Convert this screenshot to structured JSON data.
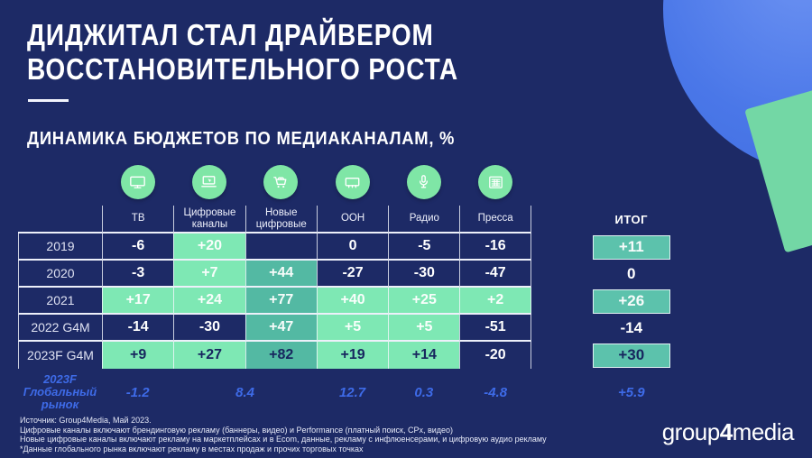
{
  "slide": {
    "title_line1": "ДИДЖИТАЛ СТАЛ ДРАЙВЕРОМ",
    "title_line2": "ВОССТАНОВИТЕЛЬНОГО РОСТА",
    "subtitle": "ДИНАМИКА БЮДЖЕТОВ ПО МЕДИАКАНАЛАМ, %"
  },
  "colors": {
    "background": "#1D2A66",
    "mint_cell": "#7EE8B4",
    "teal_cell": "#53B9A3",
    "total_box": "#5CC2AC",
    "accent_blue": "#3E6BE8",
    "icon_circle_green": "#7FE6A6",
    "decor_circle_blue": "#4A77E8",
    "decor_square_green": "#73D7A5",
    "text_white": "#FFFFFF",
    "text_dark_navy": "#17265E"
  },
  "table": {
    "columns": [
      {
        "label": "ТВ",
        "icon": "tv-icon"
      },
      {
        "label": "Цифровые каналы",
        "icon": "digital-channels-icon"
      },
      {
        "label": "Новые цифровые",
        "icon": "shopping-cart-icon"
      },
      {
        "label": "ООН",
        "icon": "billboard-icon"
      },
      {
        "label": "Радио",
        "icon": "microphone-icon"
      },
      {
        "label": "Пресса",
        "icon": "press-icon"
      }
    ],
    "total_label": "ИТОГ",
    "rows": [
      {
        "label": "2019",
        "cells": [
          {
            "v": "-6"
          },
          {
            "v": "+20",
            "bg": "mint",
            "fg": "light"
          },
          {
            "v": ""
          },
          {
            "v": "0"
          },
          {
            "v": "-5"
          },
          {
            "v": "-16"
          }
        ],
        "total": {
          "v": "+11",
          "box": true,
          "fg": "light"
        }
      },
      {
        "label": "2020",
        "cells": [
          {
            "v": "-3"
          },
          {
            "v": "+7",
            "bg": "mint",
            "fg": "light"
          },
          {
            "v": "+44",
            "bg": "teal",
            "fg": "light"
          },
          {
            "v": "-27"
          },
          {
            "v": "-30"
          },
          {
            "v": "-47"
          }
        ],
        "total": {
          "v": "0",
          "box": false
        }
      },
      {
        "label": "2021",
        "cells": [
          {
            "v": "+17",
            "bg": "mint",
            "fg": "light"
          },
          {
            "v": "+24",
            "bg": "mint",
            "fg": "light"
          },
          {
            "v": "+77",
            "bg": "teal",
            "fg": "light"
          },
          {
            "v": "+40",
            "bg": "mint",
            "fg": "light"
          },
          {
            "v": "+25",
            "bg": "mint",
            "fg": "light"
          },
          {
            "v": "+2",
            "bg": "mint",
            "fg": "light"
          }
        ],
        "total": {
          "v": "+26",
          "box": true,
          "fg": "light"
        }
      },
      {
        "label": "2022 G4M",
        "cells": [
          {
            "v": "-14"
          },
          {
            "v": "-30"
          },
          {
            "v": "+47",
            "bg": "teal",
            "fg": "light"
          },
          {
            "v": "+5",
            "bg": "mint",
            "fg": "light"
          },
          {
            "v": "+5",
            "bg": "mint",
            "fg": "light"
          },
          {
            "v": "-51"
          }
        ],
        "total": {
          "v": "-14",
          "box": false
        }
      },
      {
        "label": "2023F G4M",
        "cells": [
          {
            "v": "+9",
            "bg": "mint",
            "fg": "dark"
          },
          {
            "v": "+27",
            "bg": "mint",
            "fg": "dark"
          },
          {
            "v": "+82",
            "bg": "teal",
            "fg": "dark"
          },
          {
            "v": "+19",
            "bg": "mint",
            "fg": "dark"
          },
          {
            "v": "+14",
            "bg": "mint",
            "fg": "dark"
          },
          {
            "v": "-20"
          }
        ],
        "total": {
          "v": "+30",
          "box": true,
          "fg": "dark"
        }
      }
    ],
    "global_row": {
      "label_lines": [
        "2023F",
        "Глобальный",
        "рынок"
      ],
      "cells": [
        {
          "v": "-1.2",
          "span": 1
        },
        {
          "v": "8.4",
          "span": 2
        },
        {
          "v": "12.7",
          "span": 1
        },
        {
          "v": "0.3",
          "span": 1
        },
        {
          "v": "-4.8",
          "span": 1
        }
      ],
      "total": "+5.9"
    }
  },
  "chart_data": {
    "type": "table",
    "title": "ДИНАМИКА БЮДЖЕТОВ ПО МЕДИАКАНАЛАМ, %",
    "columns": [
      "ТВ",
      "Цифровые каналы",
      "Новые цифровые",
      "ООН",
      "Радио",
      "Пресса",
      "ИТОГ"
    ],
    "rows": [
      {
        "label": "2019",
        "values": [
          -6,
          20,
          null,
          0,
          -5,
          -16,
          11
        ]
      },
      {
        "label": "2020",
        "values": [
          -3,
          7,
          44,
          -27,
          -30,
          -47,
          0
        ]
      },
      {
        "label": "2021",
        "values": [
          17,
          24,
          77,
          40,
          25,
          2,
          26
        ]
      },
      {
        "label": "2022 G4M",
        "values": [
          -14,
          -30,
          47,
          5,
          5,
          -51,
          -14
        ]
      },
      {
        "label": "2023F G4M",
        "values": [
          9,
          27,
          82,
          19,
          14,
          -20,
          30
        ]
      },
      {
        "label": "2023F Глобальный рынок",
        "values": [
          -1.2,
          8.4,
          null,
          12.7,
          0.3,
          -4.8,
          5.9
        ],
        "note": "8.4 охватывает Цифровые каналы и Новые цифровые"
      }
    ]
  },
  "footer": {
    "lines": [
      "Источник: Group4Media, Май 2023.",
      "Цифровые каналы включают брендинговую рекламу (баннеры, видео) и Performance (платный поиск, CPx, видео)",
      "Новые цифровые каналы включают рекламу на маркетплейсах и в Ecom, данные, рекламу с инфлюенсерами, и цифровую аудио рекламу",
      "*Данные глобального рынка включают рекламу в местах продаж и прочих торговых точках"
    ]
  },
  "logo": {
    "part1": "group",
    "part2": "4",
    "part3": "media"
  }
}
